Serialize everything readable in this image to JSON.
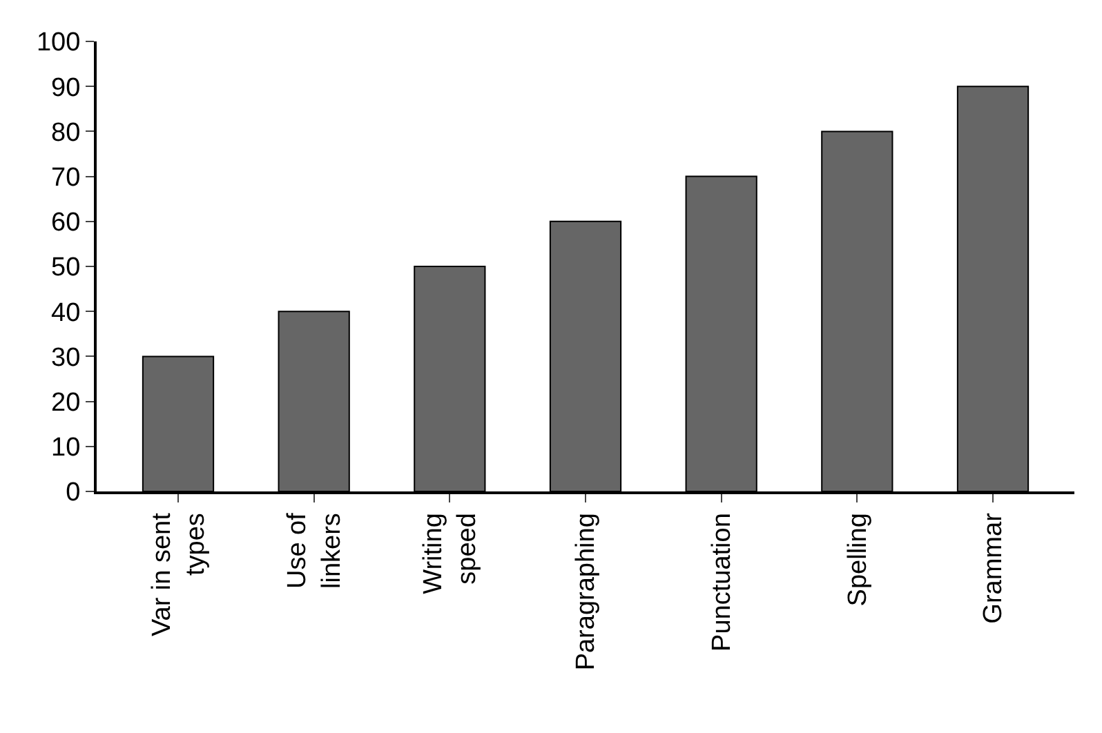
{
  "chart_data": {
    "type": "bar",
    "categories": [
      "Var in sent\ntypes",
      "Use of\nlinkers",
      "Writing\nspeed",
      "Paragraphing",
      "Punctuation",
      "Spelling",
      "Grammar"
    ],
    "values": [
      30,
      40,
      50,
      60,
      70,
      80,
      90
    ],
    "color": "#666666",
    "ylim": [
      0,
      100
    ],
    "yticks": [
      0,
      10,
      20,
      30,
      40,
      50,
      60,
      70,
      80,
      90,
      100
    ],
    "grid": false
  }
}
